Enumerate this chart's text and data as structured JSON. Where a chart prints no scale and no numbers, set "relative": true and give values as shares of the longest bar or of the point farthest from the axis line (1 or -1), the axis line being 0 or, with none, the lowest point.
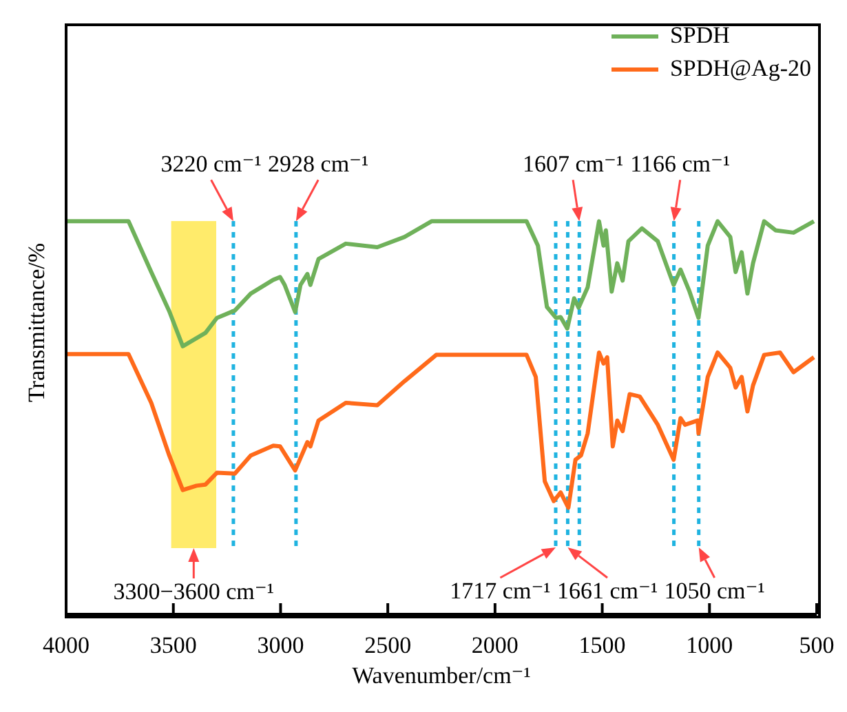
{
  "chart_data": {
    "type": "line",
    "relative": true,
    "xlabel": "Wavenumber/cm⁻¹",
    "ylabel": "Transmittance/%",
    "xlim": [
      4000,
      500
    ],
    "xticks": [
      4000,
      3500,
      3000,
      2500,
      2000,
      1500,
      1000,
      500
    ],
    "legend": "top right",
    "grid": false,
    "marker": "none",
    "line_style": "solid",
    "series": [
      {
        "name": "SPDH",
        "color": "#6fb15a",
        "x": [
          4000,
          3709,
          3603,
          3519,
          3456,
          3350,
          3297,
          3213,
          3139,
          3034,
          3002,
          2981,
          2932,
          2907,
          2875,
          2861,
          2823,
          2696,
          2549,
          2422,
          2296,
          1853,
          1800,
          1758,
          1715,
          1694,
          1663,
          1631,
          1610,
          1568,
          1515,
          1494,
          1483,
          1456,
          1430,
          1405,
          1378,
          1315,
          1241,
          1167,
          1135,
          1093,
          1051,
          1008,
          962,
          903,
          878,
          850,
          823,
          797,
          745,
          692,
          608,
          513
        ],
        "values": [
          1,
          1,
          0.871,
          0.771,
          0.682,
          0.716,
          0.754,
          0.773,
          0.816,
          0.851,
          0.858,
          0.838,
          0.769,
          0.838,
          0.866,
          0.838,
          0.904,
          0.943,
          0.934,
          0.96,
          1,
          1,
          0.938,
          0.782,
          0.754,
          0.756,
          0.727,
          0.804,
          0.78,
          0.832,
          1,
          0.938,
          0.977,
          0.821,
          0.893,
          0.849,
          0.949,
          0.982,
          0.949,
          0.838,
          0.877,
          0.821,
          0.754,
          0.938,
          1,
          0.96,
          0.871,
          0.921,
          0.816,
          0.893,
          1,
          0.977,
          0.971,
          1
        ]
      },
      {
        "name": "SPDH@Ag-20",
        "color": "#ff6a1a",
        "x": [
          4000,
          3709,
          3603,
          3519,
          3456,
          3392,
          3350,
          3297,
          3213,
          3139,
          3034,
          3002,
          2932,
          2875,
          2861,
          2823,
          2696,
          2549,
          2422,
          2274,
          1853,
          1810,
          1768,
          1726,
          1694,
          1658,
          1625,
          1599,
          1568,
          1515,
          1494,
          1477,
          1451,
          1430,
          1405,
          1372,
          1325,
          1241,
          1167,
          1135,
          1114,
          1055,
          1051,
          1008,
          962,
          903,
          878,
          850,
          823,
          797,
          745,
          671,
          608,
          513
        ],
        "values": [
          0.662,
          0.662,
          0.538,
          0.404,
          0.316,
          0.327,
          0.33,
          0.36,
          0.358,
          0.404,
          0.429,
          0.427,
          0.366,
          0.438,
          0.427,
          0.493,
          0.538,
          0.532,
          0.593,
          0.66,
          0.66,
          0.604,
          0.338,
          0.288,
          0.31,
          0.271,
          0.393,
          0.404,
          0.46,
          0.666,
          0.638,
          0.654,
          0.427,
          0.493,
          0.466,
          0.56,
          0.554,
          0.482,
          0.393,
          0.499,
          0.482,
          0.493,
          0.46,
          0.604,
          0.666,
          0.627,
          0.577,
          0.604,
          0.516,
          0.582,
          0.66,
          0.666,
          0.616,
          0.654
        ]
      }
    ],
    "ref_lines": [
      {
        "axis": "x",
        "value": 3220,
        "color": "#1fb3e0",
        "line_style": "dashed"
      },
      {
        "axis": "x",
        "value": 2928,
        "color": "#1fb3e0",
        "line_style": "dashed"
      },
      {
        "axis": "x",
        "value": 1717,
        "color": "#1fb3e0",
        "line_style": "dashed"
      },
      {
        "axis": "x",
        "value": 1661,
        "color": "#1fb3e0",
        "line_style": "dashed"
      },
      {
        "axis": "x",
        "value": 1607,
        "color": "#1fb3e0",
        "line_style": "dashed"
      },
      {
        "axis": "x",
        "value": 1166,
        "color": "#1fb3e0",
        "line_style": "dashed"
      },
      {
        "axis": "x",
        "value": 1050,
        "color": "#1fb3e0",
        "line_style": "dashed"
      }
    ],
    "bands": [
      {
        "axis": "x",
        "from": 3300,
        "to": 3510,
        "color": "#ffeb6b",
        "label": "3300−3600 cm⁻¹"
      }
    ],
    "annotations": [
      {
        "text": "3220 cm⁻¹",
        "x": 3220,
        "y": 1.0
      },
      {
        "text": "2928 cm⁻¹",
        "x": 2928,
        "y": 1.0
      },
      {
        "text": "1607 cm⁻¹",
        "x": 1607,
        "y": 1.0
      },
      {
        "text": "1166 cm⁻¹",
        "x": 1166,
        "y": 1.0
      },
      {
        "text": "1717 cm⁻¹",
        "x": 1717,
        "y": 0.17
      },
      {
        "text": "1661 cm⁻¹",
        "x": 1661,
        "y": 0.17
      },
      {
        "text": "1050 cm⁻¹",
        "x": 1050,
        "y": 0.17
      }
    ]
  }
}
